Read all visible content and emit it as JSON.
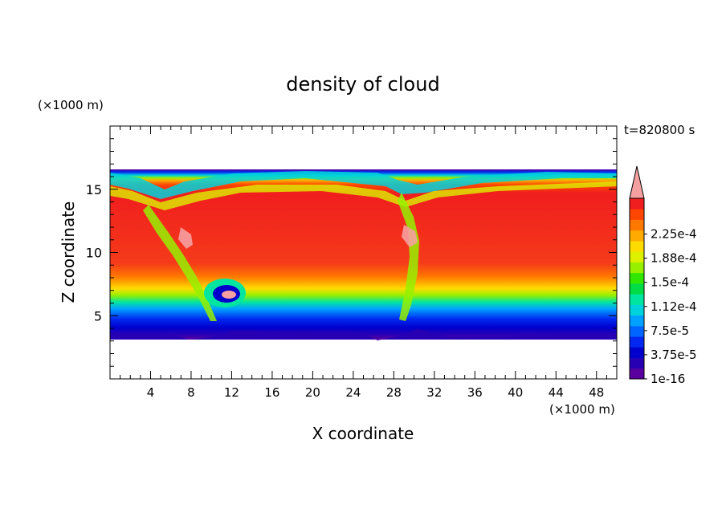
{
  "chart_data": {
    "type": "heatmap",
    "title": "density of cloud",
    "xlabel": "X coordinate",
    "ylabel": "Z coordinate",
    "x_unit": "(×1000 m)",
    "y_unit": "(×1000 m)",
    "time_label": "t=820800 s",
    "xlim": [
      0,
      50
    ],
    "ylim": [
      0,
      20
    ],
    "x_ticks": [
      4,
      8,
      12,
      16,
      20,
      24,
      28,
      32,
      36,
      40,
      44,
      48
    ],
    "y_ticks": [
      5,
      10,
      15
    ],
    "colorbar": {
      "colors": [
        "#5a00a0",
        "#2800b4",
        "#0000cd",
        "#0028f0",
        "#0064ff",
        "#00a0ff",
        "#00d2dc",
        "#00e6a0",
        "#00dc46",
        "#32e600",
        "#96f000",
        "#dcf000",
        "#ffdc00",
        "#ffaa00",
        "#ff7800",
        "#ff4600",
        "#f01e1e",
        "#f5a0a0"
      ],
      "tick_labels": [
        "1e-16",
        "3.75e-5",
        "7.5e-5",
        "1.12e-4",
        "1.5e-4",
        "1.88e-4",
        "2.25e-4"
      ],
      "extend": "max"
    },
    "field_summary": {
      "cloud_base_km": 3.5,
      "cloud_top_km": 16.5,
      "core_value": "2.25e-4"
    }
  }
}
